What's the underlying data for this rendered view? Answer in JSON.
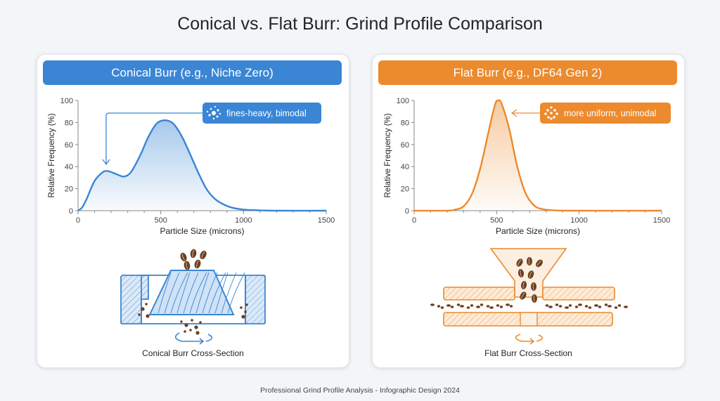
{
  "title": "Conical vs. Flat Burr: Grind Profile Comparison",
  "footer": "Professional Grind Profile Analysis - Infographic Design 2024",
  "colors": {
    "conical": "#3a86d4",
    "flat": "#ec8a2e",
    "bean": "#6b3f22"
  },
  "panels": [
    {
      "header": "Conical Burr (e.g., Niche Zero)",
      "callout": "fines-heavy, bimodal",
      "callout_icon": "scatter-dots-icon",
      "caption": "Conical Burr Cross-Section"
    },
    {
      "header": "Flat Burr (e.g., DF64 Gen 2)",
      "callout": "more uniform, unimodal",
      "callout_icon": "cluster-dots-icon",
      "caption": "Flat Burr Cross-Section"
    }
  ],
  "chart_data": [
    {
      "type": "area",
      "xlabel": "Particle Size (microns)",
      "ylabel": "Relative Frequency (%)",
      "xlim": [
        0,
        1500
      ],
      "ylim": [
        0,
        100
      ],
      "xticks": [
        0,
        500,
        1000,
        1500
      ],
      "yticks": [
        0,
        20,
        40,
        60,
        80,
        100
      ],
      "grid": false,
      "annotation": "fines-heavy, bimodal",
      "x": [
        0,
        25,
        50,
        100,
        150,
        175,
        200,
        250,
        280,
        320,
        375,
        425,
        475,
        525,
        575,
        625,
        675,
        725,
        775,
        825,
        875,
        925,
        1000,
        1100,
        1200,
        1500
      ],
      "y": [
        0,
        3,
        10,
        27,
        35,
        36,
        35,
        32,
        31,
        35,
        50,
        67,
        79,
        82,
        79,
        68,
        52,
        35,
        20,
        11,
        6,
        3,
        1,
        0.3,
        0,
        0
      ]
    },
    {
      "type": "area",
      "xlabel": "Particle Size (microns)",
      "ylabel": "Relative Frequency (%)",
      "xlim": [
        0,
        1500
      ],
      "ylim": [
        0,
        100
      ],
      "xticks": [
        0,
        500,
        1000,
        1500
      ],
      "yticks": [
        0,
        20,
        40,
        60,
        80,
        100
      ],
      "grid": false,
      "annotation": "more uniform, unimodal",
      "x": [
        0,
        200,
        250,
        300,
        350,
        400,
        450,
        490,
        510,
        530,
        575,
        625,
        675,
        725,
        775,
        850,
        1000,
        1500
      ],
      "y": [
        0,
        0,
        1,
        4,
        15,
        38,
        71,
        96,
        100,
        97,
        75,
        40,
        16,
        5,
        1.5,
        0.3,
        0,
        0
      ]
    }
  ]
}
